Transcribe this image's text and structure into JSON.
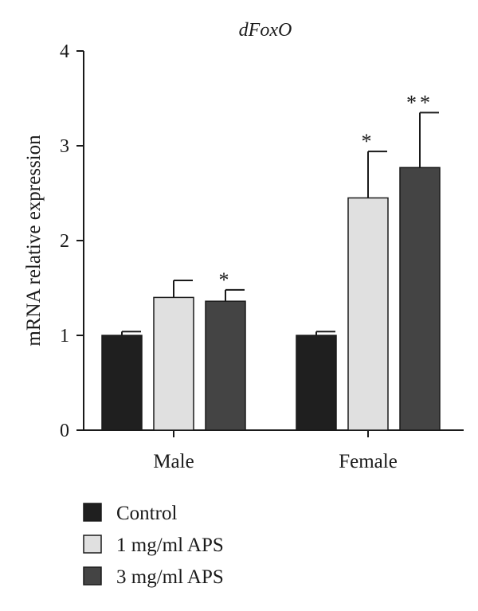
{
  "chart_data": {
    "type": "bar",
    "title": "dFoxO",
    "xlabel": "",
    "ylabel": "mRNA relative expression",
    "ylim": [
      0,
      4
    ],
    "yticks": [
      0,
      1,
      2,
      3,
      4
    ],
    "categories": [
      "Male",
      "Female"
    ],
    "series": [
      {
        "name": "Control",
        "color": "#1f1f1f",
        "values": [
          1.0,
          1.0
        ],
        "errors": [
          0.04,
          0.04
        ],
        "significance": [
          "",
          ""
        ]
      },
      {
        "name": "1 mg/ml APS",
        "color": "#e0e0e0",
        "values": [
          1.4,
          2.45
        ],
        "errors": [
          0.18,
          0.49
        ],
        "significance": [
          "",
          "*"
        ]
      },
      {
        "name": "3 mg/ml APS",
        "color": "#444444",
        "values": [
          1.36,
          2.77
        ],
        "errors": [
          0.12,
          0.58
        ],
        "significance": [
          "*",
          "**"
        ]
      }
    ],
    "grid": false,
    "legend_position": "bottom-left"
  }
}
